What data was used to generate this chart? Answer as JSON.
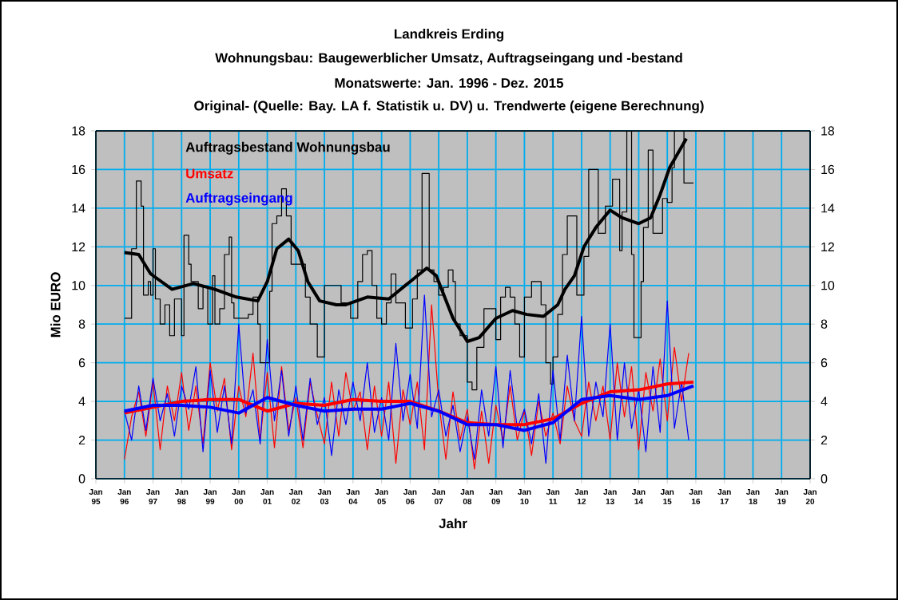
{
  "chart_data": {
    "type": "line",
    "title": "Landkreis Erding",
    "subtitle": "Wohnungsbau: Baugewerblicher Umsatz, Auftragseingang und -bestand",
    "annotations": [
      "Monatswerte: Jan. 1996 - Dez. 2015",
      "Original- (Quelle: Bay. LA f. Statistik u. DV) u. Trendwerte (eigene Berechnung)"
    ],
    "xlabel": "Jahr",
    "ylabel": "Mio EURO",
    "xlim": [
      "1995-01",
      "2020-01"
    ],
    "xticks": [
      {
        "value": "1995-01",
        "label": "Jan 95"
      },
      {
        "value": "1996-01",
        "label": "Jan 96"
      },
      {
        "value": "1997-01",
        "label": "Jan 97"
      },
      {
        "value": "1998-01",
        "label": "Jan 98"
      },
      {
        "value": "1999-01",
        "label": "Jan 99"
      },
      {
        "value": "2000-01",
        "label": "Jan 00"
      },
      {
        "value": "2001-01",
        "label": "Jan 01"
      },
      {
        "value": "2002-01",
        "label": "Jan 02"
      },
      {
        "value": "2003-01",
        "label": "Jan 03"
      },
      {
        "value": "2004-01",
        "label": "Jan 04"
      },
      {
        "value": "2005-01",
        "label": "Jan 05"
      },
      {
        "value": "2006-01",
        "label": "Jan 06"
      },
      {
        "value": "2007-01",
        "label": "Jan 07"
      },
      {
        "value": "2008-01",
        "label": "Jan 08"
      },
      {
        "value": "2009-01",
        "label": "Jan 09"
      },
      {
        "value": "2010-01",
        "label": "Jan 10"
      },
      {
        "value": "2011-01",
        "label": "Jan 11"
      },
      {
        "value": "2012-01",
        "label": "Jan 12"
      },
      {
        "value": "2013-01",
        "label": "Jan 13"
      },
      {
        "value": "2014-01",
        "label": "Jan 14"
      },
      {
        "value": "2015-01",
        "label": "Jan 15"
      },
      {
        "value": "2016-01",
        "label": "Jan 16"
      },
      {
        "value": "2017-01",
        "label": "Jan 17"
      },
      {
        "value": "2018-01",
        "label": "Jan 18"
      },
      {
        "value": "2019-01",
        "label": "Jan 19"
      },
      {
        "value": "2020-01",
        "label": "Jan 20"
      }
    ],
    "ylim": [
      0,
      18
    ],
    "yticks": [
      0,
      2,
      4,
      6,
      8,
      10,
      12,
      14,
      16,
      18
    ],
    "y2lim": [
      0,
      18
    ],
    "y2ticks": [
      0,
      2,
      4,
      6,
      8,
      10,
      12,
      14,
      16,
      18
    ],
    "grid": true,
    "legend": "top left",
    "x": [
      "1996-01",
      "1996-04",
      "1996-07",
      "1996-10",
      "1997-01",
      "1997-04",
      "1997-07",
      "1997-10",
      "1998-01",
      "1998-04",
      "1998-07",
      "1998-10",
      "1999-01",
      "1999-04",
      "1999-07",
      "1999-10",
      "2000-01",
      "2000-04",
      "2000-07",
      "2000-10",
      "2001-01",
      "2001-04",
      "2001-07",
      "2001-10",
      "2002-01",
      "2002-04",
      "2002-07",
      "2002-10",
      "2003-01",
      "2003-04",
      "2003-07",
      "2003-10",
      "2004-01",
      "2004-04",
      "2004-07",
      "2004-10",
      "2005-01",
      "2005-04",
      "2005-07",
      "2005-10",
      "2006-01",
      "2006-04",
      "2006-07",
      "2006-10",
      "2007-01",
      "2007-04",
      "2007-07",
      "2007-10",
      "2008-01",
      "2008-04",
      "2008-07",
      "2008-10",
      "2009-01",
      "2009-04",
      "2009-07",
      "2009-10",
      "2010-01",
      "2010-04",
      "2010-07",
      "2010-10",
      "2011-01",
      "2011-04",
      "2011-07",
      "2011-10",
      "2012-01",
      "2012-04",
      "2012-07",
      "2012-10",
      "2013-01",
      "2013-04",
      "2013-07",
      "2013-10",
      "2014-01",
      "2014-04",
      "2014-07",
      "2014-10",
      "2015-01",
      "2015-04",
      "2015-07",
      "2015-10"
    ],
    "series": [
      {
        "name": "Auftragsbestand Wohnungsbau",
        "type": "step",
        "color": "#000000",
        "x": [
          "1996-01",
          "1996-03",
          "1996-04",
          "1996-06",
          "1996-08",
          "1996-09",
          "1996-11",
          "1996-12",
          "1997-01",
          "1997-02",
          "1997-04",
          "1997-06",
          "1997-08",
          "1997-10",
          "1998-01",
          "1998-02",
          "1998-04",
          "1998-05",
          "1998-08",
          "1998-10",
          "1998-12",
          "1999-02",
          "1999-03",
          "1999-05",
          "1999-07",
          "1999-09",
          "1999-10",
          "1999-11",
          "2000-03",
          "2000-05",
          "2000-07",
          "2000-09",
          "2000-10",
          "2001-01",
          "2001-02",
          "2001-03",
          "2001-05",
          "2001-07",
          "2001-09",
          "2001-11",
          "2002-02",
          "2002-05",
          "2002-07",
          "2002-10",
          "2003-01",
          "2003-08",
          "2003-12",
          "2004-03",
          "2004-05",
          "2004-07",
          "2004-09",
          "2004-11",
          "2005-01",
          "2005-03",
          "2005-05",
          "2005-07",
          "2005-10",
          "2005-11",
          "2006-02",
          "2006-04",
          "2006-06",
          "2006-08",
          "2006-09",
          "2006-11",
          "2007-01",
          "2007-03",
          "2007-05",
          "2007-07",
          "2007-08",
          "2007-10",
          "2008-01",
          "2008-03",
          "2008-05",
          "2008-08",
          "2008-11",
          "2009-01",
          "2009-03",
          "2009-05",
          "2009-07",
          "2009-09",
          "2009-11",
          "2010-01",
          "2010-04",
          "2010-06",
          "2010-08",
          "2010-10",
          "2010-12",
          "2011-01",
          "2011-03",
          "2011-05",
          "2011-07",
          "2011-09",
          "2011-11",
          "2012-01",
          "2012-02",
          "2012-03",
          "2012-04",
          "2012-07",
          "2012-08",
          "2012-10",
          "2012-11",
          "2013-01",
          "2013-02",
          "2013-04",
          "2013-05",
          "2013-06",
          "2013-08",
          "2013-09",
          "2013-10",
          "2013-11",
          "2014-01",
          "2014-02",
          "2014-03",
          "2014-05",
          "2014-06",
          "2014-07",
          "2014-09",
          "2014-11",
          "2015-01",
          "2015-03",
          "2015-04",
          "2015-06",
          "2015-08",
          "2015-09",
          "2015-12"
        ],
        "values": [
          8.3,
          8.3,
          11.9,
          15.4,
          14.1,
          9.5,
          10.2,
          9.5,
          11.9,
          9.3,
          8.0,
          9.0,
          7.4,
          9.3,
          7.4,
          12.6,
          11.1,
          10.2,
          8.8,
          9.9,
          8.0,
          10.5,
          8.0,
          8.8,
          11.6,
          12.5,
          9.1,
          8.3,
          8.3,
          8.5,
          9.4,
          8.0,
          6.0,
          6.0,
          9.7,
          13.2,
          13.6,
          15.0,
          13.6,
          11.1,
          11.1,
          9.4,
          8.0,
          6.3,
          10.0,
          9.1,
          8.3,
          10.2,
          11.6,
          11.8,
          10.0,
          8.3,
          8.0,
          9.1,
          10.6,
          9.1,
          9.1,
          7.8,
          9.3,
          10.8,
          15.8,
          15.8,
          10.8,
          10.2,
          9.5,
          9.9,
          10.8,
          10.2,
          8.0,
          7.4,
          5.0,
          4.6,
          6.8,
          8.8,
          8.8,
          7.2,
          9.4,
          9.9,
          9.4,
          8.0,
          6.3,
          9.4,
          10.2,
          10.2,
          9.0,
          6.0,
          4.9,
          6.3,
          8.5,
          11.6,
          13.6,
          13.6,
          9.5,
          9.5,
          11.5,
          11.5,
          16.0,
          16.0,
          12.7,
          12.7,
          14.1,
          14.1,
          15.5,
          15.5,
          11.8,
          13.8,
          18,
          18,
          11.6,
          7.3,
          7.3,
          10.2,
          13.0,
          17.0,
          17.0,
          12.7,
          12.7,
          14.5,
          14.3,
          16.1,
          18,
          18,
          15.3,
          15.3,
          15.3
        ]
      },
      {
        "color": "#000000",
        "x": [
          "1996-01",
          "1996-07",
          "1996-12",
          "1997-09",
          "1998-06",
          "1999-03",
          "1999-12",
          "2000-09",
          "2001-01",
          "2001-05",
          "2001-10",
          "2002-02",
          "2002-06",
          "2002-11",
          "2003-06",
          "2003-10",
          "2004-07",
          "2005-04",
          "2006-01",
          "2006-08",
          "2006-12",
          "2007-07",
          "2008-01",
          "2008-06",
          "2009-01",
          "2009-08",
          "2010-02",
          "2010-09",
          "2011-03",
          "2011-06",
          "2011-10",
          "2012-02",
          "2012-07",
          "2013-01",
          "2013-06",
          "2014-01",
          "2014-06",
          "2014-10",
          "2015-02",
          "2015-09"
        ],
        "values": [
          11.7,
          11.6,
          10.6,
          9.8,
          10.1,
          9.8,
          9.4,
          9.2,
          10.2,
          11.9,
          12.4,
          11.8,
          10.2,
          9.2,
          9.0,
          9.0,
          9.4,
          9.3,
          10.2,
          10.9,
          10.5,
          8.3,
          7.1,
          7.3,
          8.3,
          8.7,
          8.5,
          8.4,
          9.0,
          9.8,
          10.5,
          12.0,
          13.0,
          13.9,
          13.5,
          13.2,
          13.5,
          14.7,
          16.1,
          17.6
        ]
      },
      {
        "name": "Umsatz",
        "color": "#ff0000",
        "values": [
          1.0,
          3.2,
          4.5,
          2.2,
          5.0,
          1.5,
          4.8,
          3.0,
          5.5,
          2.5,
          4.8,
          1.8,
          6.0,
          3.5,
          5.2,
          1.5,
          4.8,
          3.2,
          6.5,
          2.0,
          5.5,
          1.6,
          5.8,
          2.5,
          4.2,
          1.6,
          5.0,
          3.3,
          1.8,
          5.0,
          2.2,
          5.5,
          3.5,
          4.5,
          1.5,
          4.8,
          2.2,
          5.0,
          0.8,
          4.6,
          2.8,
          5.0,
          1.5,
          9.0,
          4.0,
          1.0,
          4.5,
          2.0,
          3.6,
          0.5,
          3.5,
          0.8,
          3.8,
          2.0,
          4.8,
          2.0,
          3.5,
          1.2,
          4.0,
          2.2,
          3.4,
          1.8,
          4.8,
          3.0,
          2.2,
          5.0,
          3.0,
          4.8,
          2.0,
          6.0,
          3.2,
          5.8,
          1.5,
          5.5,
          3.5,
          6.2,
          3.0,
          6.8,
          4.0,
          6.5
        ]
      },
      {
        "name": "Auftragseingang",
        "color": "#0000ff",
        "values": [
          3.5,
          2.0,
          4.8,
          2.5,
          5.2,
          3.0,
          4.4,
          2.2,
          4.8,
          3.6,
          5.8,
          1.4,
          5.6,
          2.4,
          4.8,
          1.8,
          8.0,
          3.4,
          4.6,
          1.8,
          7.2,
          3.0,
          5.6,
          2.2,
          4.8,
          2.0,
          5.2,
          2.8,
          4.2,
          1.2,
          4.6,
          2.8,
          5.0,
          3.0,
          6.0,
          2.4,
          4.2,
          2.0,
          7.0,
          3.0,
          5.4,
          2.6,
          9.5,
          3.2,
          4.6,
          2.2,
          3.8,
          1.4,
          3.2,
          1.0,
          4.6,
          2.2,
          5.8,
          1.6,
          5.6,
          2.6,
          3.6,
          1.8,
          4.4,
          0.8,
          5.6,
          2.0,
          6.4,
          3.0,
          8.4,
          2.2,
          5.0,
          3.2,
          8.0,
          2.0,
          6.0,
          2.6,
          4.6,
          1.4,
          5.8,
          2.4,
          9.2,
          2.6,
          5.0,
          2.0
        ]
      },
      {
        "color": "#ff0000",
        "x": [
          "1996-01",
          "1997-01",
          "1998-01",
          "1999-01",
          "2000-01",
          "2001-01",
          "2002-01",
          "2003-01",
          "2004-01",
          "2005-01",
          "2006-01",
          "2007-01",
          "2008-01",
          "2009-01",
          "2010-01",
          "2011-01",
          "2012-01",
          "2013-01",
          "2014-01",
          "2015-01",
          "2015-12"
        ],
        "values": [
          3.4,
          3.7,
          4.0,
          4.1,
          4.1,
          3.5,
          3.9,
          3.8,
          4.1,
          4.0,
          4.0,
          3.5,
          2.9,
          2.8,
          2.8,
          3.1,
          3.9,
          4.5,
          4.6,
          4.9,
          5.0
        ]
      },
      {
        "color": "#0000ff",
        "x": [
          "1996-01",
          "1997-01",
          "1998-01",
          "1999-01",
          "2000-01",
          "2001-01",
          "2002-01",
          "2003-01",
          "2004-01",
          "2005-01",
          "2006-01",
          "2007-01",
          "2008-01",
          "2009-01",
          "2010-01",
          "2011-01",
          "2012-01",
          "2013-01",
          "2014-01",
          "2015-01",
          "2015-12"
        ],
        "values": [
          3.5,
          3.8,
          3.8,
          3.7,
          3.4,
          4.2,
          3.8,
          3.5,
          3.6,
          3.6,
          3.9,
          3.5,
          2.8,
          2.8,
          2.5,
          2.9,
          4.1,
          4.3,
          4.1,
          4.3,
          4.8
        ]
      }
    ]
  }
}
